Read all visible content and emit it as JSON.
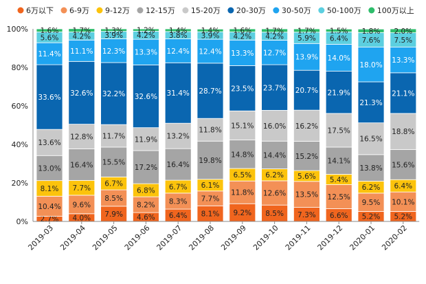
{
  "chart_data": {
    "type": "bar",
    "stacked": true,
    "categories": [
      "2019-03",
      "2019-04",
      "2019-05",
      "2019-06",
      "2019-07",
      "2019-08",
      "2019-09",
      "2019-10",
      "2019-11",
      "2019-12",
      "2020-01",
      "2020-02"
    ],
    "ylim": [
      0,
      100
    ],
    "yticks": [
      "0%",
      "20%",
      "40%",
      "60%",
      "80%",
      "100%"
    ],
    "legend_position": "top",
    "series": [
      {
        "name": "6万以下",
        "color": "#F0651E",
        "label_color": "#222222",
        "values": [
          2.7,
          4.0,
          7.9,
          4.6,
          6.4,
          8.1,
          9.2,
          8.5,
          7.3,
          6.6,
          5.2,
          5.2
        ]
      },
      {
        "name": "6-9万",
        "color": "#F39056",
        "label_color": "#222222",
        "values": [
          10.4,
          9.6,
          8.5,
          8.2,
          8.3,
          7.7,
          11.8,
          12.6,
          13.5,
          12.5,
          9.5,
          10.1
        ]
      },
      {
        "name": "9-12万",
        "color": "#FCC30C",
        "label_color": "#222222",
        "values": [
          8.1,
          7.7,
          6.7,
          6.8,
          6.7,
          6.1,
          6.5,
          6.2,
          5.6,
          5.4,
          6.2,
          6.4
        ]
      },
      {
        "name": "12-15万",
        "color": "#A5A5A5",
        "label_color": "#222222",
        "values": [
          13.0,
          16.4,
          15.5,
          17.2,
          16.4,
          19.8,
          14.8,
          14.4,
          15.2,
          14.1,
          13.8,
          15.6
        ]
      },
      {
        "name": "15-20万",
        "color": "#C9C9C9",
        "label_color": "#222222",
        "values": [
          13.6,
          12.8,
          11.7,
          11.9,
          13.2,
          11.8,
          15.1,
          16.0,
          16.2,
          17.5,
          16.5,
          18.8
        ]
      },
      {
        "name": "20-30万",
        "color": "#0A66B0",
        "label_color": "#ffffff",
        "values": [
          33.6,
          32.6,
          32.2,
          32.6,
          31.4,
          28.7,
          23.5,
          23.7,
          20.7,
          21.9,
          21.3,
          21.1
        ]
      },
      {
        "name": "30-50万",
        "color": "#1FA4F0",
        "label_color": "#ffffff",
        "values": [
          11.4,
          11.1,
          12.3,
          13.3,
          12.4,
          12.4,
          13.3,
          12.7,
          13.9,
          14.0,
          18.0,
          13.3
        ]
      },
      {
        "name": "50-100万",
        "color": "#5CCFE0",
        "label_color": "#222222",
        "values": [
          5.6,
          4.2,
          3.9,
          4.2,
          3.8,
          3.9,
          4.2,
          4.2,
          5.9,
          6.4,
          7.6,
          7.5
        ]
      },
      {
        "name": "100万以上",
        "color": "#2EBD6B",
        "label_color": "#222222",
        "values": [
          1.6,
          1.7,
          1.3,
          1.2,
          1.4,
          1.4,
          1.6,
          1.7,
          1.7,
          1.5,
          1.8,
          2.0
        ]
      }
    ]
  }
}
